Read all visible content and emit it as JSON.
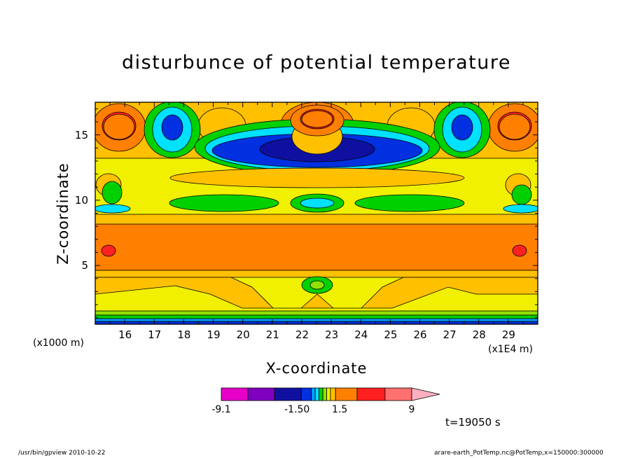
{
  "page": {
    "title": "disturbunce of potential temperature",
    "time_label": "t=19050 s",
    "footer_left": "/usr/bin/gpview   2010-10-22",
    "footer_right": "arare-earth_PotTemp.nc@PotTemp,x=150000:300000"
  },
  "colors": {
    "palette": [
      "#e600c8",
      "#8000c0",
      "#1010a0",
      "#0030e0",
      "#00a0ff",
      "#00e0ff",
      "#00d000",
      "#90e000",
      "#f0f000",
      "#ffc000",
      "#ff8000",
      "#ff2020",
      "#ff7070",
      "#ffb0c0"
    ]
  },
  "chart_data": {
    "type": "heatmap",
    "title": "disturbunce of potential temperature",
    "xlabel": "X-coordinate",
    "ylabel": "Z-coordinate",
    "x_unit": "(x1E4 m)",
    "y_unit": "(x1000 m)",
    "xlim": [
      15,
      30
    ],
    "ylim": [
      0.5,
      17.5
    ],
    "x_ticks": [
      16,
      17,
      18,
      19,
      20,
      21,
      22,
      23,
      24,
      25,
      26,
      27,
      28,
      29
    ],
    "y_ticks": [
      5,
      10,
      15
    ],
    "grid": false,
    "colorbar": {
      "tick_labels": [
        "-9.1",
        "-1.50",
        "1.5",
        "9"
      ],
      "levels": [
        -9.1,
        -6,
        -3.5,
        -1.5,
        -1,
        -0.6,
        -0.3,
        0.3,
        0.6,
        1,
        1.5,
        3.5,
        6,
        9
      ],
      "colors": [
        "#e600c8",
        "#8000c0",
        "#1010a0",
        "#0030e0",
        "#00a0ff",
        "#00e0ff",
        "#00d000",
        "#90e000",
        "#f0f000",
        "#ffc000",
        "#ff8000",
        "#ff2020",
        "#ff7070"
      ],
      "extend_color": "#ffb0c0"
    }
  }
}
